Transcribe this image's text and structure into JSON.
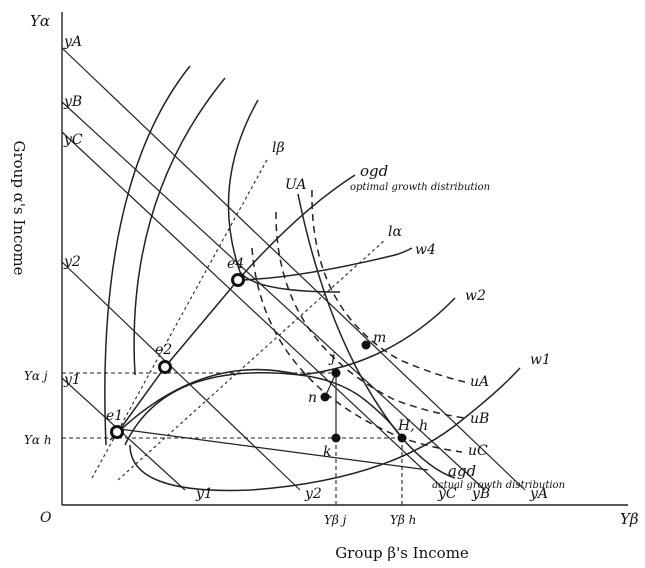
{
  "axes": {
    "y_axis_label": "Yα",
    "x_axis_label": "Yβ",
    "origin_label": "O",
    "vertical_title": "Group α's Income",
    "horizontal_title": "Group β's Income"
  },
  "budget_lines": {
    "yA": "yA",
    "yB": "yB",
    "yC": "yC",
    "y2": "y2",
    "y1": "y1"
  },
  "indifference_curves": {
    "w4": "w4",
    "w2": "w2",
    "w1": "w1"
  },
  "possibility_curves": {
    "uA": "uA",
    "uB": "uB",
    "uC": "uC",
    "UA": "UA"
  },
  "rays": {
    "l_beta": "lβ",
    "l_alpha": "lα",
    "ogd": "ogd",
    "ogd_desc": "optimal growth distribution",
    "agd": "agd",
    "agd_desc": "actual growth distribution"
  },
  "points": {
    "e1": "e1",
    "e2": "e2",
    "e4": "e4",
    "j": "j",
    "m": "m",
    "n": "n",
    "k": "k",
    "Hh": "H, h"
  },
  "tick_labels": {
    "Y_alpha_j": "Yα j",
    "Y_alpha_h": "Yα h",
    "Y_beta_j": "Yβ j",
    "Y_beta_h": "Yβ h"
  }
}
